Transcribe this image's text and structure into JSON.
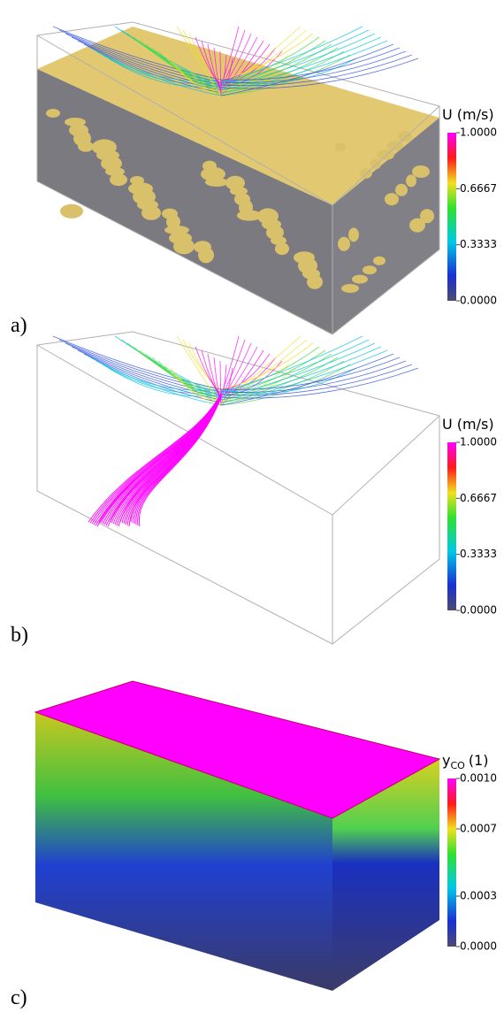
{
  "panels": [
    {
      "label": "a)",
      "colorbar": {
        "title": "U (m/s)",
        "range": [
          0,
          1
        ],
        "ticks": [
          {
            "value": 1,
            "label": "1.0000"
          },
          {
            "value": 0.6667,
            "label": "0.6667"
          },
          {
            "value": 0.3333,
            "label": "0.3333"
          },
          {
            "value": 0,
            "label": "0.0000"
          }
        ]
      }
    },
    {
      "label": "b)",
      "colorbar": {
        "title": "U (m/s)",
        "range": [
          0,
          1
        ],
        "ticks": [
          {
            "value": 1,
            "label": "1.0000"
          },
          {
            "value": 0.6667,
            "label": "0.6667"
          },
          {
            "value": 0.3333,
            "label": "0.3333"
          },
          {
            "value": 0,
            "label": "0.0000"
          }
        ]
      }
    },
    {
      "label": "c)",
      "colorbar": {
        "title": "y",
        "title_sub": "CO",
        "title_unit": "(1)",
        "range": [
          0,
          0.001
        ],
        "ticks": [
          {
            "value": 0.001,
            "label": "0.0010"
          },
          {
            "value": 0.0007,
            "label": "0.0007"
          },
          {
            "value": 0.0003,
            "label": "0.0003"
          },
          {
            "value": 0,
            "label": "0.0000"
          }
        ]
      }
    }
  ]
}
